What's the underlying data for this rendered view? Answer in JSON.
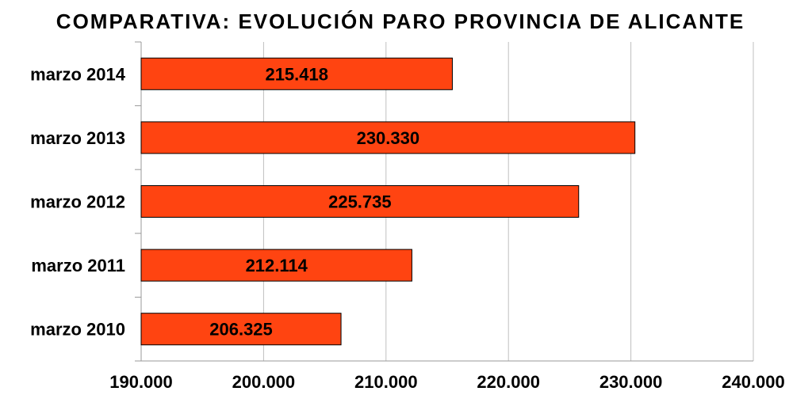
{
  "chart_data": {
    "type": "bar",
    "orientation": "horizontal",
    "title": "COMPARATIVA: EVOLUCIÓN PARO PROVINCIA DE ALICANTE",
    "categories": [
      "marzo 2014",
      "marzo 2013",
      "marzo 2012",
      "marzo 2011",
      "marzo 2010"
    ],
    "values": [
      215418,
      230330,
      225735,
      212114,
      206325
    ],
    "value_labels": [
      "215.418",
      "230.330",
      "225.735",
      "212.114",
      "206.325"
    ],
    "xlim": [
      190000,
      240000
    ],
    "xticks": [
      190000,
      200000,
      210000,
      220000,
      230000,
      240000
    ],
    "xtick_labels": [
      "190.000",
      "200.000",
      "210.000",
      "220.000",
      "230.000",
      "240.000"
    ],
    "xlabel": "",
    "ylabel": "",
    "grid": "vertical",
    "legend": "none",
    "colors": {
      "bar": "#FF4411",
      "bar_stroke": "#000000",
      "grid": "#BFBFBF"
    }
  }
}
